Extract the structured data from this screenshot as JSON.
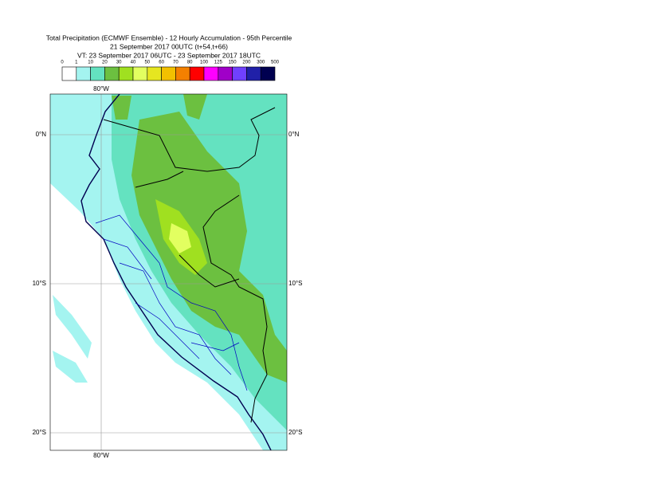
{
  "title": [
    "Total Precipitation (ECMWF Ensemble) - 12 Hourly Accumulation - 95th Percentile",
    "21 September 2017 00UTC (t+54,t+66)",
    "VT: 23 September 2017 06UTC - 23 September 2017 18UTC"
  ],
  "legend": {
    "levels": [
      0,
      1,
      10,
      20,
      30,
      40,
      50,
      60,
      70,
      80,
      100,
      125,
      150,
      200,
      300,
      500
    ],
    "colors": [
      "#ffffff",
      "#a4f4f0",
      "#64e2c0",
      "#6cc040",
      "#a0e020",
      "#e2ff60",
      "#e6e620",
      "#f2c000",
      "#f48000",
      "#ff0000",
      "#ff00ff",
      "#a000c8",
      "#7040ff",
      "#2020a8",
      "#000050"
    ]
  },
  "grid_labels": {
    "lon": "80°W",
    "lat": [
      "0°N",
      "10°S",
      "20°S"
    ]
  }
}
